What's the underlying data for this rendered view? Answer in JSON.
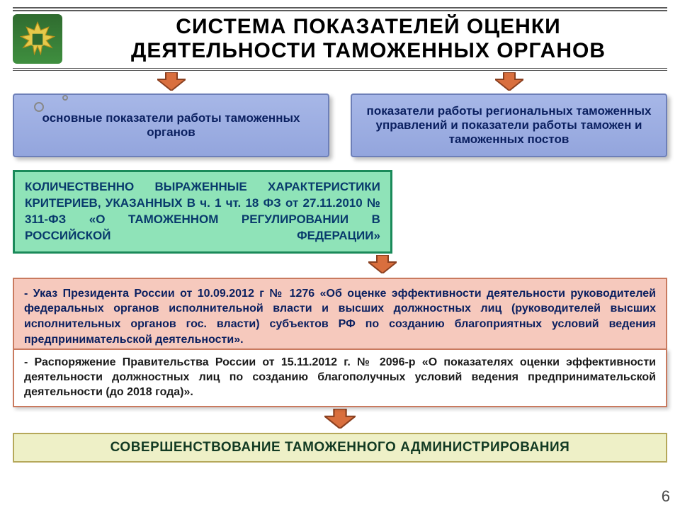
{
  "colors": {
    "rule": "#5a5a5a",
    "title": "#000000",
    "blue_bg": "#a7b7e7",
    "blue_border": "#6d7fb8",
    "blue_text": "#0b2060",
    "arrow_fill": "#d96f3e",
    "arrow_border": "#8a4020",
    "green_bg": "#8fe3b8",
    "green_border": "#1a8a5a",
    "green_text": "#083a6c",
    "pink_bg": "#f6c9bd",
    "pink_border": "#c97a5f",
    "pink_text": "#0b2060",
    "white_border": "#c97a5f",
    "footer_border": "#b5a85a",
    "footer_bg": "#eef0c7",
    "footer_text": "#123a23",
    "pagenum": "#4a4a4a"
  },
  "title": {
    "line1": "СИСТЕМА ПОКАЗАТЕЛЕЙ ОЦЕНКИ",
    "line2": "ДЕЯТЕЛЬНОСТИ ТАМОЖЕННЫХ ОРГАНОВ",
    "fontsize": 30
  },
  "blue_left": "основные показатели работы таможенных органов",
  "blue_right": "показатели работы региональных таможенных управлений и показатели работы таможен и таможенных постов",
  "blue_fontsize": 17,
  "green": "КОЛИЧЕСТВЕННО ВЫРАЖЕННЫЕ ХАРАКТЕРИСТИКИ КРИТЕРИЕВ, УКАЗАННЫХ В ч. 1 чт. 18 ФЗ от 27.11.2010 № 311-ФЗ «О ТАМОЖЕННОМ РЕГУЛИРОВАНИИ В РОССИЙСКОЙ ФЕДЕРАЦИИ»",
  "green_fontsize": 17,
  "green_width_pct": 58,
  "pink": "- Указ Президента России от 10.09.2012 г № 1276 «Об оценке эффективности деятельности руководителей федеральных органов исполнительной власти и высших должностных лиц (руководителей высших исполнительных органов гос. власти) субъектов РФ по созданию благоприятных условий ведения предпринимательской деятельности».",
  "pink_fontsize": 16,
  "white": "- Распоряжение Правительства России от 15.11.2012 г. № 2096-р «О показателях оценки эффективности деятельности должностных лиц по созданию благополучных условий ведения предпринимательской деятельности (до 2018 года)».",
  "white_fontsize": 16,
  "footer": "СОВЕРШЕНСТВОВАНИЕ ТАМОЖЕННОГО АДМИНИСТРИРОВАНИЯ",
  "footer_fontsize": 19,
  "page_number": "6",
  "arrows": {
    "width": 40,
    "height": 26
  }
}
